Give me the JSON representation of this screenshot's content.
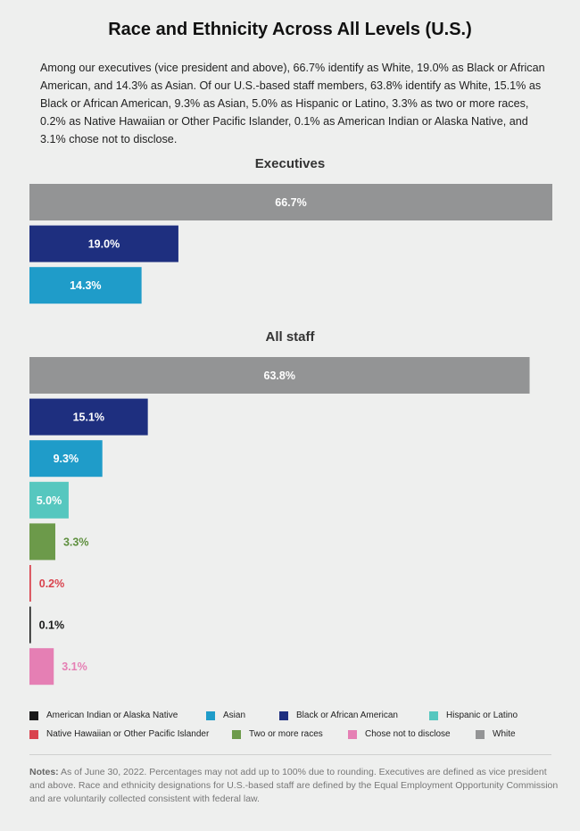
{
  "title": "Race and Ethnicity Across All Levels (U.S.)",
  "intro": "Among our executives (vice president and above), 66.7% identify as White, 19.0% as Black or African American, and 14.3% as Asian. Of our U.S.-based staff members, 63.8% identify as White, 15.1% as Black or African American, 9.3% as Asian, 5.0% as Hispanic or Latino, 3.3% as two or more races, 0.2% as Native Hawaiian or Other Pacific Islander, 0.1% as American Indian or Alaska Native, and 3.1% chose not to disclose.",
  "chart_data": [
    {
      "type": "bar",
      "orientation": "horizontal",
      "title": "Executives",
      "categories": [
        "White",
        "Black or African American",
        "Asian"
      ],
      "values": [
        66.7,
        19.0,
        14.3
      ],
      "labels": [
        "66.7%",
        "19.0%",
        "14.3%"
      ],
      "colors": [
        "#939495",
        "#1e2f7f",
        "#1f9cc9"
      ],
      "label_colors": [
        "#ffffff",
        "#ffffff",
        "#ffffff"
      ],
      "xlim": [
        0,
        66.7
      ],
      "grid": false
    },
    {
      "type": "bar",
      "orientation": "horizontal",
      "title": "All staff",
      "categories": [
        "White",
        "Black or African American",
        "Asian",
        "Hispanic or Latino",
        "Two or more races",
        "Native Hawaiian or Other Pacific Islander",
        "American Indian or Alaska Native",
        "Chose not to disclose"
      ],
      "values": [
        63.8,
        15.1,
        9.3,
        5.0,
        3.3,
        0.2,
        0.1,
        3.1
      ],
      "labels": [
        "63.8%",
        "15.1%",
        "9.3%",
        "5.0%",
        "3.3%",
        "0.2%",
        "0.1%",
        "3.1%"
      ],
      "colors": [
        "#939495",
        "#1e2f7f",
        "#1f9cc9",
        "#56c7bf",
        "#6c9a4a",
        "#d9434e",
        "#1a1a1a",
        "#e57fb4"
      ],
      "label_colors": [
        "#ffffff",
        "#ffffff",
        "#ffffff",
        "#ffffff",
        "#5e8f3e",
        "#d9434e",
        "#1a1a1a",
        "#e57fb4"
      ],
      "xlim": [
        0,
        66.7
      ],
      "grid": false
    }
  ],
  "legend": {
    "placement": "bottom",
    "items": [
      {
        "label": "American Indian or Alaska Native",
        "color": "#1a1a1a"
      },
      {
        "label": "Asian",
        "color": "#1f9cc9"
      },
      {
        "label": "Black or African American",
        "color": "#1e2f7f"
      },
      {
        "label": "Hispanic or Latino",
        "color": "#56c7bf"
      },
      {
        "label": "Native Hawaiian or Other Pacific Islander",
        "color": "#d9434e"
      },
      {
        "label": "Two or more races",
        "color": "#6c9a4a"
      },
      {
        "label": "Chose not to disclose",
        "color": "#e57fb4"
      },
      {
        "label": "White",
        "color": "#939495"
      }
    ]
  },
  "notes": {
    "label": "Notes:",
    "text": " As of June 30, 2022. Percentages may not add up to 100% due to rounding. Executives are defined as vice president and above. Race and ethnicity designations for U.S.-based staff are defined by the Equal Employment Opportunity Commission and are voluntarily collected consistent with federal law."
  }
}
